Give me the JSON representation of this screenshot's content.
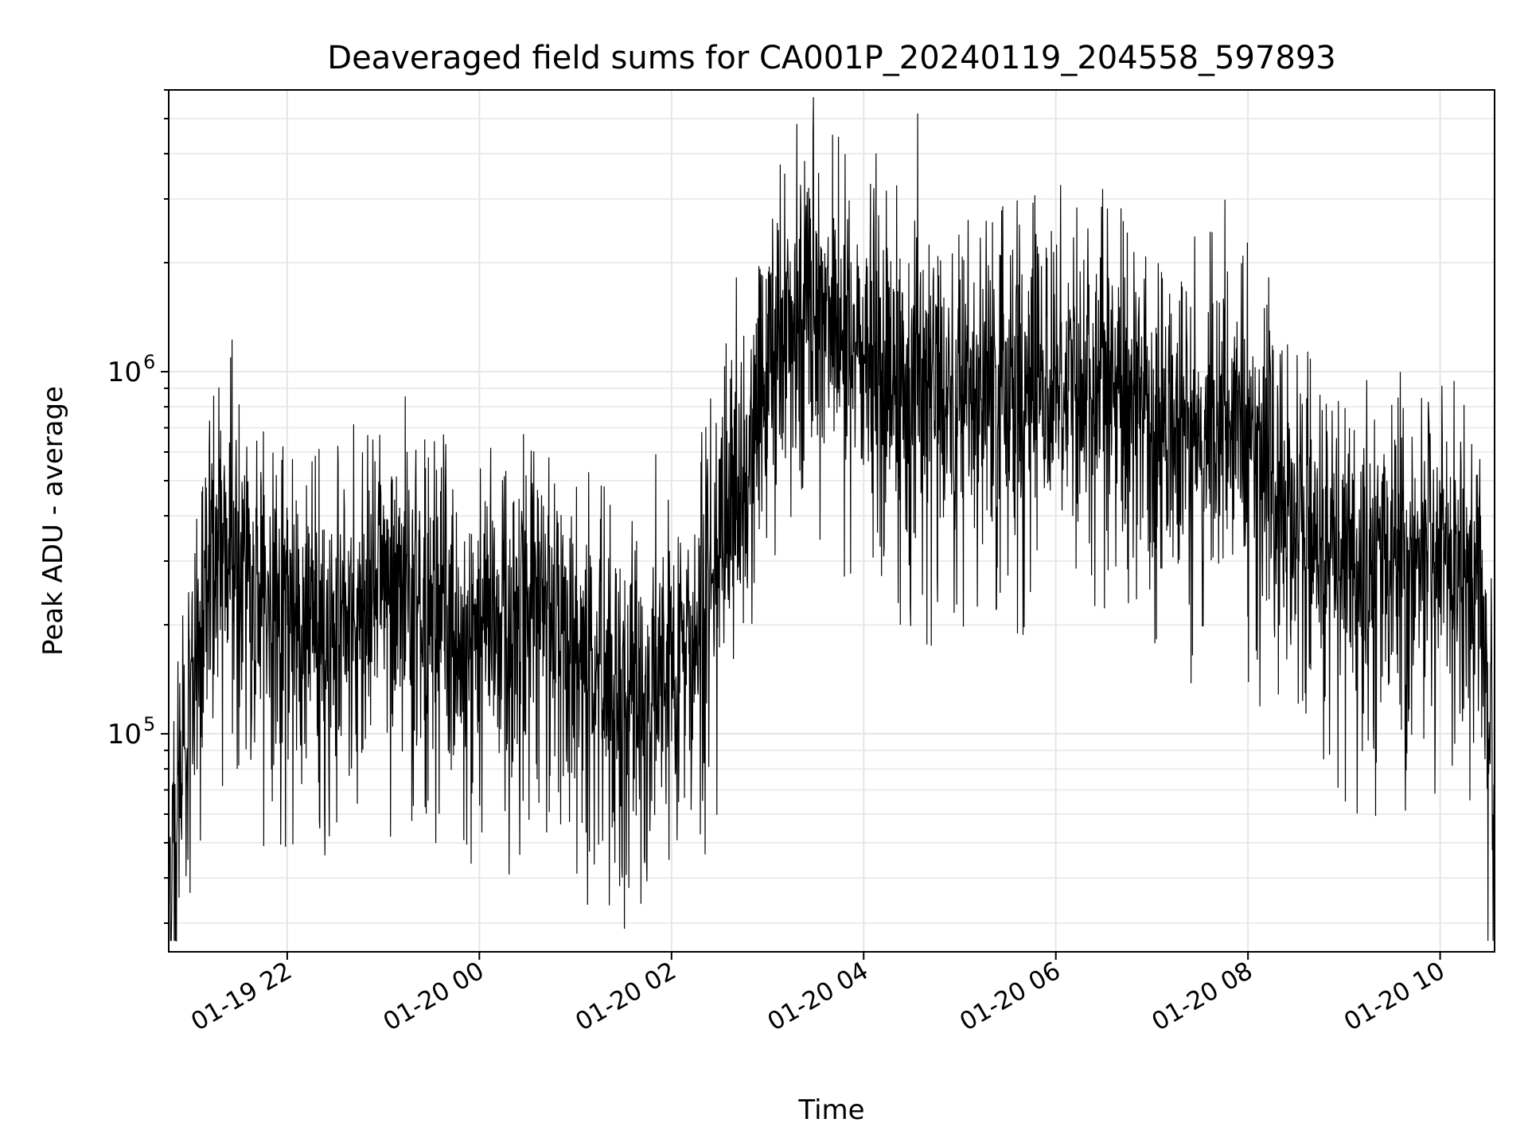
{
  "chart_data": {
    "type": "line",
    "title": "Deaveraged field sums for CA001P_20240119_204558_597893",
    "xlabel": "Time",
    "ylabel": "Peak ADU - average",
    "y_scale": "log",
    "ylim": [
      25000,
      6000000
    ],
    "xlim": [
      "2024-01-19 20:46",
      "2024-01-20 10:34"
    ],
    "grid": true,
    "legend": "none",
    "line_color": "#000000",
    "x_ticks": [
      {
        "label": "01-19 22",
        "t": "2024-01-19 22:00"
      },
      {
        "label": "01-20 00",
        "t": "2024-01-20 00:00"
      },
      {
        "label": "01-20 02",
        "t": "2024-01-20 02:00"
      },
      {
        "label": "01-20 04",
        "t": "2024-01-20 04:00"
      },
      {
        "label": "01-20 06",
        "t": "2024-01-20 06:00"
      },
      {
        "label": "01-20 08",
        "t": "2024-01-20 08:00"
      },
      {
        "label": "01-20 10",
        "t": "2024-01-20 10:00"
      }
    ],
    "y_ticks": [
      {
        "base": "10",
        "exp": "5",
        "value": 100000
      },
      {
        "base": "10",
        "exp": "6",
        "value": 1000000
      }
    ],
    "series": [
      {
        "x": [
          "2024-01-19 20:46",
          "2024-01-19 20:55",
          "2024-01-19 21:00",
          "2024-01-19 21:10",
          "2024-01-19 21:20",
          "2024-01-19 21:30",
          "2024-01-19 21:40",
          "2024-01-19 21:50",
          "2024-01-19 22:00",
          "2024-01-19 22:15",
          "2024-01-19 22:30",
          "2024-01-19 22:45",
          "2024-01-19 23:00",
          "2024-01-19 23:15",
          "2024-01-19 23:30",
          "2024-01-19 23:45",
          "2024-01-20 00:00",
          "2024-01-20 00:15",
          "2024-01-20 00:30",
          "2024-01-20 00:45",
          "2024-01-20 01:00",
          "2024-01-20 01:15",
          "2024-01-20 01:30",
          "2024-01-20 01:45",
          "2024-01-20 02:00",
          "2024-01-20 02:15",
          "2024-01-20 02:30",
          "2024-01-20 02:45",
          "2024-01-20 03:00",
          "2024-01-20 03:15",
          "2024-01-20 03:30",
          "2024-01-20 03:45",
          "2024-01-20 04:00",
          "2024-01-20 04:15",
          "2024-01-20 04:30",
          "2024-01-20 04:45",
          "2024-01-20 05:00",
          "2024-01-20 05:15",
          "2024-01-20 05:30",
          "2024-01-20 05:45",
          "2024-01-20 06:00",
          "2024-01-20 06:15",
          "2024-01-20 06:30",
          "2024-01-20 06:45",
          "2024-01-20 07:00",
          "2024-01-20 07:15",
          "2024-01-20 07:30",
          "2024-01-20 07:45",
          "2024-01-20 08:00",
          "2024-01-20 08:15",
          "2024-01-20 08:30",
          "2024-01-20 08:45",
          "2024-01-20 09:00",
          "2024-01-20 09:15",
          "2024-01-20 09:30",
          "2024-01-20 09:45",
          "2024-01-20 10:00",
          "2024-01-20 10:15",
          "2024-01-20 10:25",
          "2024-01-20 10:34"
        ],
        "y": [
          40000,
          80000,
          150000,
          300000,
          350000,
          280000,
          250000,
          220000,
          200000,
          180000,
          190000,
          210000,
          230000,
          240000,
          220000,
          200000,
          180000,
          190000,
          220000,
          200000,
          160000,
          140000,
          130000,
          120000,
          130000,
          180000,
          300000,
          500000,
          900000,
          1500000,
          1600000,
          1300000,
          1100000,
          950000,
          900000,
          850000,
          800000,
          900000,
          850000,
          950000,
          1000000,
          1000000,
          900000,
          850000,
          700000,
          600000,
          700000,
          800000,
          700000,
          500000,
          380000,
          330000,
          300000,
          300000,
          290000,
          280000,
          300000,
          280000,
          250000,
          70000
        ]
      }
    ]
  }
}
